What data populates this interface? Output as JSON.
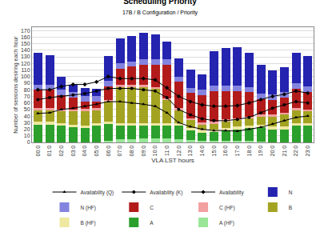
{
  "chart_data": {
    "type": "bar",
    "title": "Scheduling Priority",
    "subtitle": "17B / B Configuration / Priority",
    "x_label": "VLA LST hours",
    "y_label": "Number of sessions desiring each hour",
    "categories": [
      "00:0",
      "01:0",
      "02:0",
      "03:0",
      "04:0",
      "05:0",
      "06:0",
      "07:0",
      "08:0",
      "09:0",
      "10:0",
      "11:0",
      "12:0",
      "13:0",
      "14:0",
      "15:0",
      "16:0",
      "17:0",
      "18:0",
      "19:0",
      "20:0",
      "21:0",
      "22:0",
      "23:0"
    ],
    "stacked": true,
    "grid": true,
    "legend": "bottom",
    "ylim": [
      0,
      175
    ],
    "yticks": [
      0,
      10,
      20,
      30,
      40,
      50,
      60,
      70,
      80,
      90,
      100,
      110,
      120,
      130,
      140,
      150,
      160,
      170
    ],
    "series": [
      {
        "name": "A (HF)",
        "type": "bar",
        "color": "#99e699",
        "values": [
          0,
          0,
          0,
          0,
          0,
          0,
          3,
          5,
          5,
          6,
          6,
          6,
          5,
          4,
          3,
          2,
          2,
          2,
          2,
          1,
          0,
          0,
          0,
          0
        ]
      },
      {
        "name": "A",
        "type": "bar",
        "color": "#2ca02c",
        "values": [
          27,
          27,
          25,
          23,
          22,
          25,
          25,
          20,
          20,
          19,
          19,
          19,
          20,
          14,
          12,
          14,
          16,
          18,
          20,
          22,
          20,
          20,
          25,
          25
        ]
      },
      {
        "name": "B (HF)",
        "type": "bar",
        "color": "#eee8a0",
        "values": [
          4,
          4,
          4,
          4,
          4,
          4,
          4,
          4,
          4,
          4,
          4,
          4,
          4,
          4,
          4,
          4,
          4,
          4,
          4,
          4,
          4,
          4,
          4,
          4
        ]
      },
      {
        "name": "B",
        "type": "bar",
        "color": "#a3a322",
        "values": [
          18,
          18,
          18,
          20,
          22,
          20,
          30,
          55,
          55,
          55,
          52,
          35,
          20,
          12,
          8,
          8,
          10,
          10,
          10,
          12,
          15,
          18,
          20,
          18
        ]
      },
      {
        "name": "C (HF)",
        "type": "bar",
        "color": "#f2a0a0",
        "values": [
          3,
          3,
          3,
          3,
          3,
          3,
          3,
          3,
          3,
          3,
          3,
          3,
          3,
          3,
          3,
          3,
          3,
          3,
          3,
          3,
          3,
          3,
          3,
          3
        ]
      },
      {
        "name": "C",
        "type": "bar",
        "color": "#b31b1b",
        "values": [
          28,
          28,
          22,
          18,
          11,
          10,
          20,
          25,
          28,
          31,
          34,
          51,
          40,
          38,
          42,
          47,
          43,
          41,
          37,
          24,
          23,
          23,
          30,
          27
        ]
      },
      {
        "name": "N (HF)",
        "type": "bar",
        "color": "#8484e0",
        "values": [
          8,
          8,
          8,
          8,
          8,
          8,
          8,
          8,
          8,
          8,
          8,
          8,
          8,
          8,
          8,
          8,
          8,
          8,
          8,
          8,
          8,
          8,
          8,
          8
        ]
      },
      {
        "name": "N",
        "type": "bar",
        "color": "#2424b0",
        "values": [
          48,
          44,
          20,
          12,
          13,
          12,
          38,
          38,
          39,
          40,
          38,
          27,
          28,
          27,
          23,
          52,
          57,
          59,
          52,
          44,
          36,
          38,
          46,
          46
        ]
      },
      {
        "name": "Availability",
        "type": "line",
        "color": "#000000",
        "marker": "diamond",
        "line_style": "solid",
        "values": [
          80,
          80,
          85,
          88,
          88,
          92,
          100,
          97,
          97,
          97,
          95,
          83,
          70,
          62,
          57,
          55,
          55,
          56,
          60,
          65,
          70,
          73,
          78,
          75
        ]
      },
      {
        "name": "Availability (K)",
        "type": "line",
        "color": "#000000",
        "marker": "circle",
        "line_style": "solid",
        "values": [
          65,
          68,
          70,
          72,
          74,
          78,
          82,
          82,
          82,
          80,
          78,
          68,
          50,
          42,
          36,
          33,
          33,
          35,
          38,
          45,
          52,
          57,
          62,
          60
        ]
      },
      {
        "name": "Availability (Q)",
        "type": "line",
        "color": "#000000",
        "marker": "triangle",
        "line_style": "solid",
        "values": [
          44,
          45,
          50,
          52,
          55,
          58,
          62,
          62,
          60,
          58,
          55,
          45,
          30,
          24,
          20,
          18,
          18,
          17,
          20,
          23,
          28,
          33,
          38,
          40
        ]
      }
    ]
  }
}
